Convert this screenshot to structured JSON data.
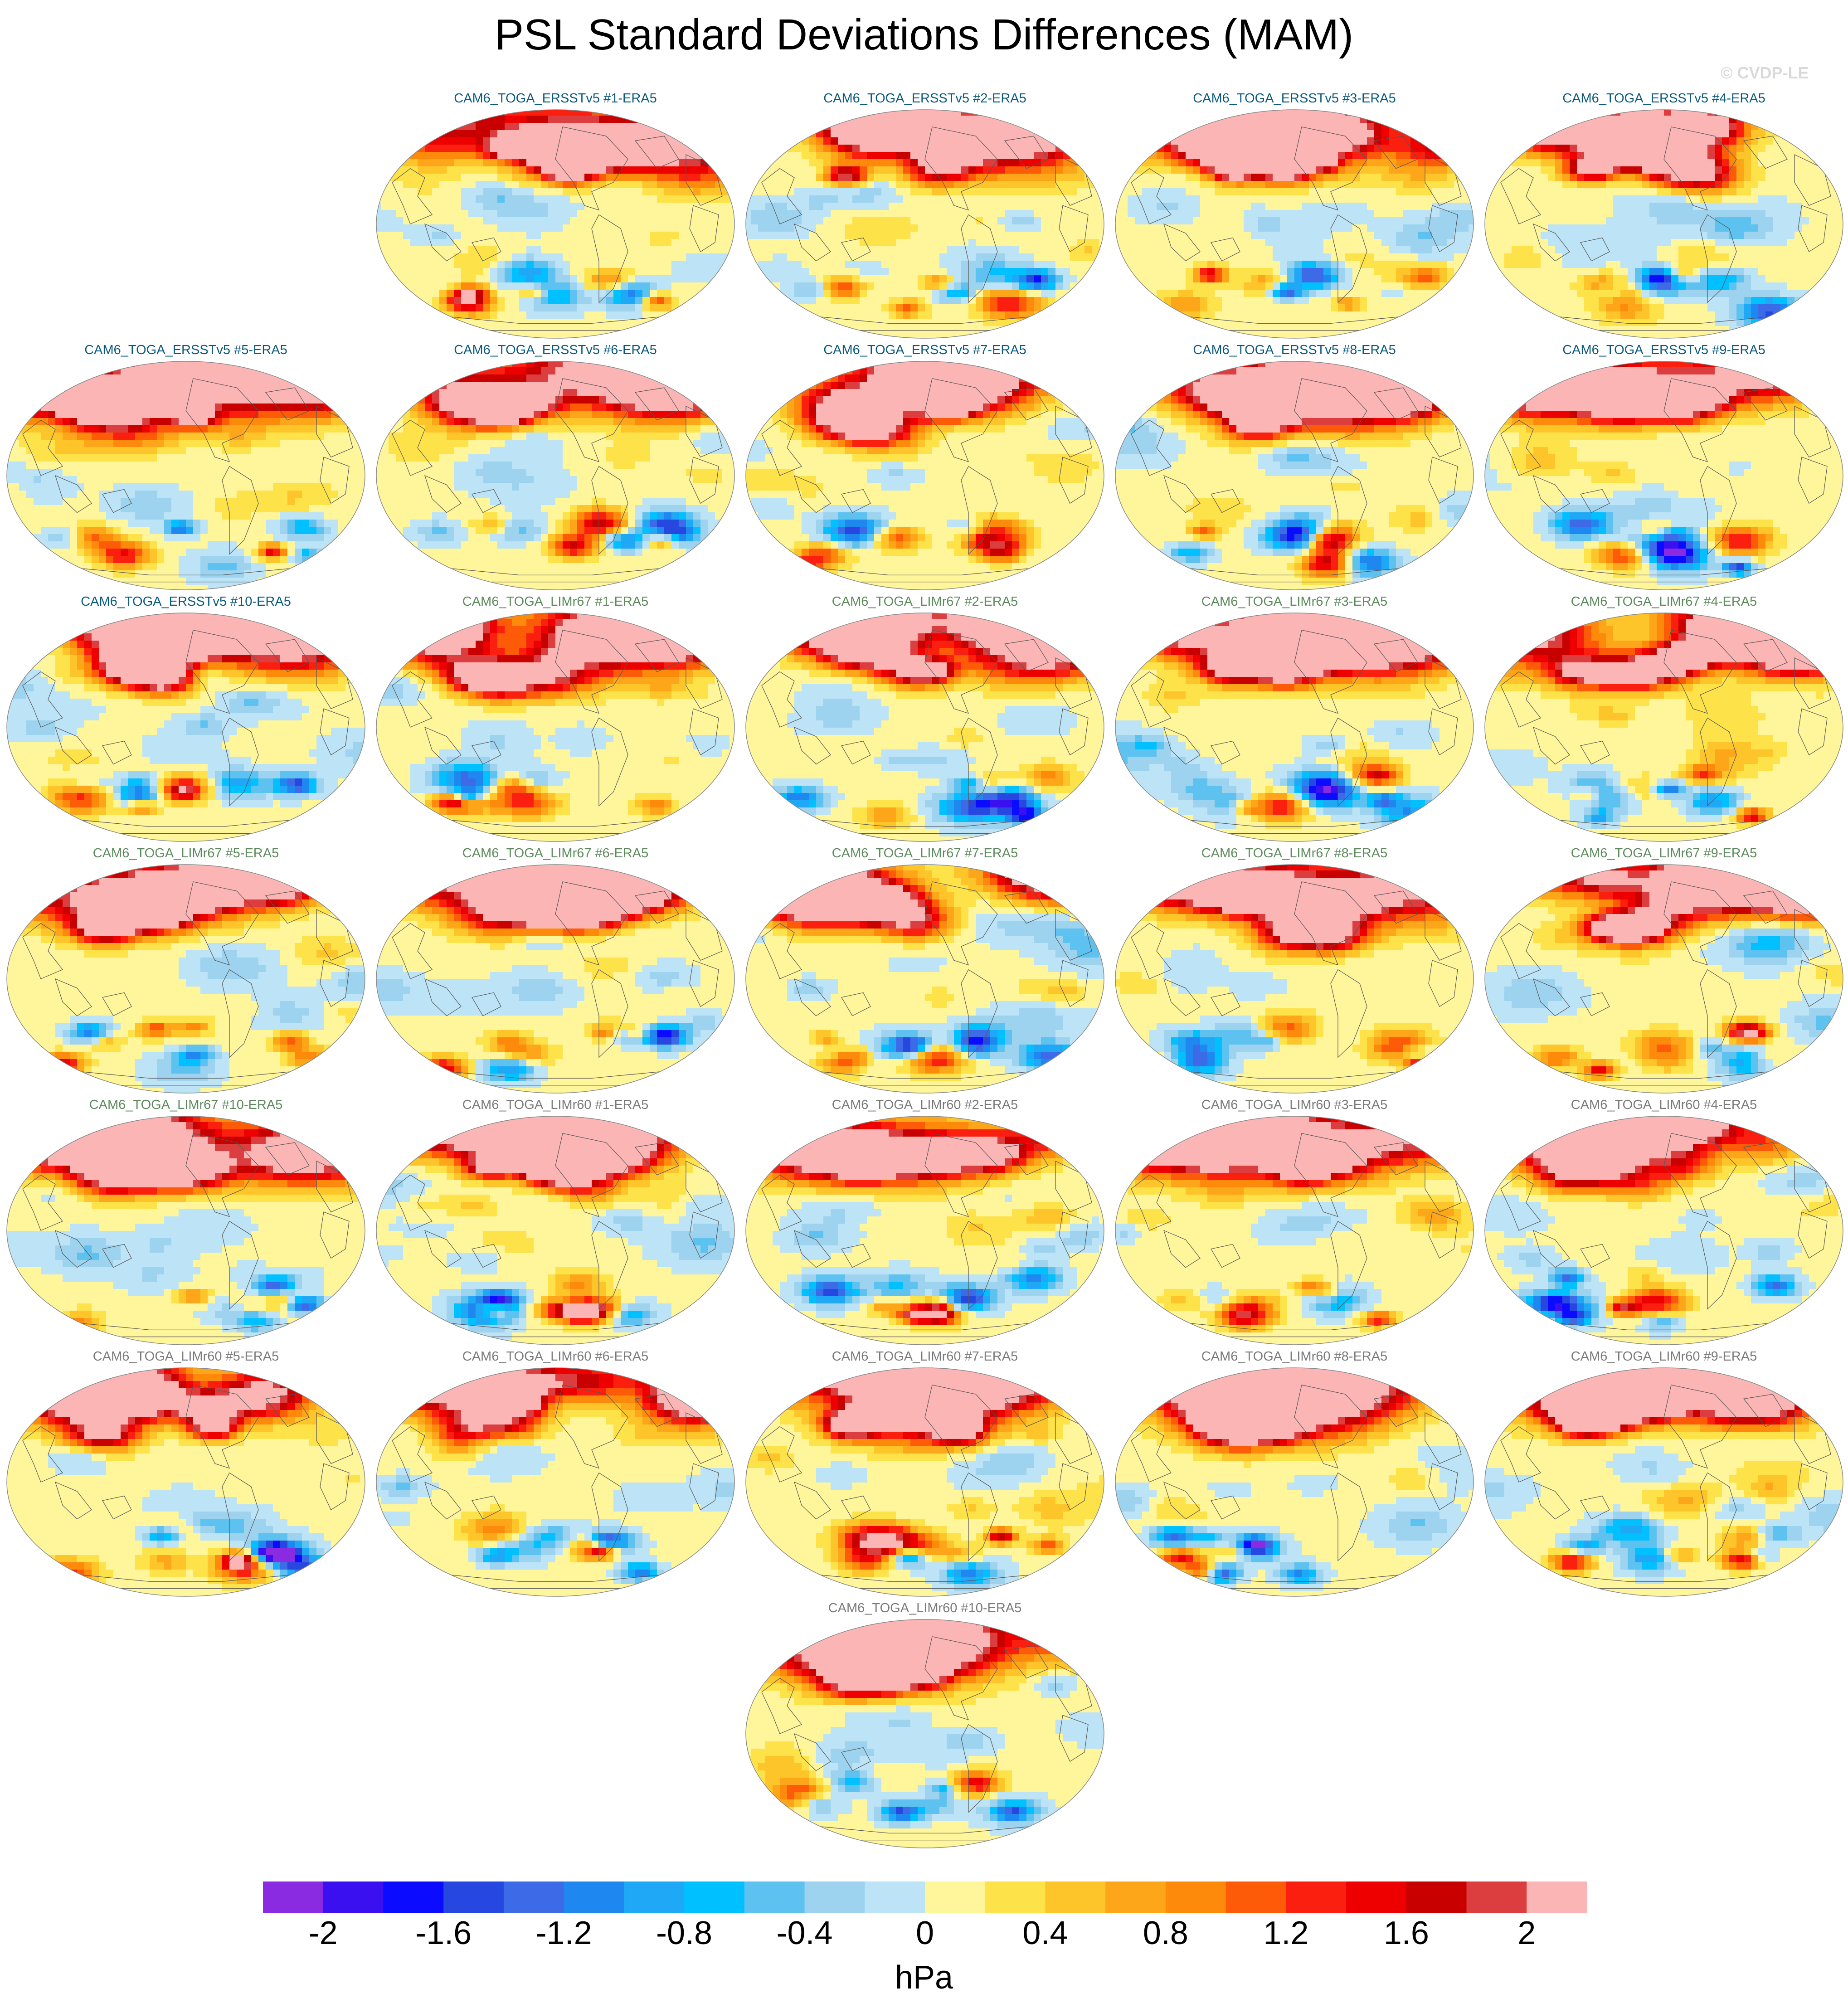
{
  "title": "PSL Standard Deviations Differences (MAM)",
  "watermark": "© CVDP-LE",
  "panels": [
    {
      "label": "CAM6_TOGA_ERSSTv5 #1-ERA5",
      "group": "ersst"
    },
    {
      "label": "CAM6_TOGA_ERSSTv5 #2-ERA5",
      "group": "ersst"
    },
    {
      "label": "CAM6_TOGA_ERSSTv5 #3-ERA5",
      "group": "ersst"
    },
    {
      "label": "CAM6_TOGA_ERSSTv5 #4-ERA5",
      "group": "ersst"
    },
    {
      "label": "CAM6_TOGA_ERSSTv5 #5-ERA5",
      "group": "ersst"
    },
    {
      "label": "CAM6_TOGA_ERSSTv5 #6-ERA5",
      "group": "ersst"
    },
    {
      "label": "CAM6_TOGA_ERSSTv5 #7-ERA5",
      "group": "ersst"
    },
    {
      "label": "CAM6_TOGA_ERSSTv5 #8-ERA5",
      "group": "ersst"
    },
    {
      "label": "CAM6_TOGA_ERSSTv5 #9-ERA5",
      "group": "ersst"
    },
    {
      "label": "CAM6_TOGA_ERSSTv5 #10-ERA5",
      "group": "ersst"
    },
    {
      "label": "CAM6_TOGA_LIMr67 #1-ERA5",
      "group": "lim67"
    },
    {
      "label": "CAM6_TOGA_LIMr67 #2-ERA5",
      "group": "lim67"
    },
    {
      "label": "CAM6_TOGA_LIMr67 #3-ERA5",
      "group": "lim67"
    },
    {
      "label": "CAM6_TOGA_LIMr67 #4-ERA5",
      "group": "lim67"
    },
    {
      "label": "CAM6_TOGA_LIMr67 #5-ERA5",
      "group": "lim67"
    },
    {
      "label": "CAM6_TOGA_LIMr67 #6-ERA5",
      "group": "lim67"
    },
    {
      "label": "CAM6_TOGA_LIMr67 #7-ERA5",
      "group": "lim67"
    },
    {
      "label": "CAM6_TOGA_LIMr67 #8-ERA5",
      "group": "lim67"
    },
    {
      "label": "CAM6_TOGA_LIMr67 #9-ERA5",
      "group": "lim67"
    },
    {
      "label": "CAM6_TOGA_LIMr67 #10-ERA5",
      "group": "lim67"
    },
    {
      "label": "CAM6_TOGA_LIMr60 #1-ERA5",
      "group": "lim60"
    },
    {
      "label": "CAM6_TOGA_LIMr60 #2-ERA5",
      "group": "lim60"
    },
    {
      "label": "CAM6_TOGA_LIMr60 #3-ERA5",
      "group": "lim60"
    },
    {
      "label": "CAM6_TOGA_LIMr60 #4-ERA5",
      "group": "lim60"
    },
    {
      "label": "CAM6_TOGA_LIMr60 #5-ERA5",
      "group": "lim60"
    },
    {
      "label": "CAM6_TOGA_LIMr60 #6-ERA5",
      "group": "lim60"
    },
    {
      "label": "CAM6_TOGA_LIMr60 #7-ERA5",
      "group": "lim60"
    },
    {
      "label": "CAM6_TOGA_LIMr60 #8-ERA5",
      "group": "lim60"
    },
    {
      "label": "CAM6_TOGA_LIMr60 #9-ERA5",
      "group": "lim60"
    },
    {
      "label": "CAM6_TOGA_LIMr60 #10-ERA5",
      "group": "lim60"
    }
  ],
  "colorbar": {
    "units": "hPa",
    "range": [
      -2.2,
      2.2
    ],
    "tick_labels": [
      "-2",
      "-1.6",
      "-1.2",
      "-0.8",
      "-0.4",
      "0",
      "0.4",
      "0.8",
      "1.2",
      "1.6",
      "2"
    ],
    "colors": [
      "#8a2be2",
      "#3a0ff0",
      "#0b0bff",
      "#2748e0",
      "#3d6be8",
      "#1e88f0",
      "#1ea8f5",
      "#00c0ff",
      "#5ec2f0",
      "#9dd3ef",
      "#bde3f6",
      "#fff59b",
      "#fde24a",
      "#fdc52a",
      "#fea61a",
      "#fd8a0b",
      "#fd5b08",
      "#fa1f0e",
      "#ee0000",
      "#c80000",
      "#dc3e40",
      "#fbb5b5"
    ]
  },
  "colors": {
    "title_ersst": "#0b5a7d",
    "title_lim67": "#5d8a5d",
    "title_lim60": "#7a7a7a",
    "land_outline": "#555555"
  }
}
